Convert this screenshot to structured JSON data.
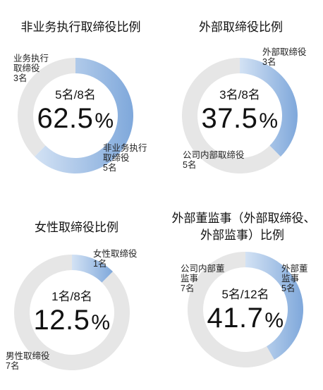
{
  "theme": {
    "highlight_start": "#d3e2f4",
    "highlight_end": "#7fa8db",
    "remainder": "#e6e6e6"
  },
  "chart_data": [
    {
      "type": "pie",
      "title": "非业务执行取缔役比例",
      "slices": [
        {
          "name": "非业务执行取缔役",
          "value": 5,
          "label_name": "非业务执行\n取缔役",
          "label_count": "5名"
        },
        {
          "name": "业务执行取缔役",
          "value": 3,
          "label_name": "业务执行\n取缔役",
          "label_count": "3名"
        }
      ],
      "center_count": "5名/8名",
      "center_value": "62.5",
      "center_unit": "%"
    },
    {
      "type": "pie",
      "title": "外部取缔役比例",
      "slices": [
        {
          "name": "外部取缔役",
          "value": 3,
          "label_name": "外部取缔役",
          "label_count": "3名"
        },
        {
          "name": "公司内部取缔役",
          "value": 5,
          "label_name": "公司内部取缔役",
          "label_count": "5名"
        }
      ],
      "center_count": "3名/8名",
      "center_value": "37.5",
      "center_unit": "%"
    },
    {
      "type": "pie",
      "title": "女性取缔役比例",
      "slices": [
        {
          "name": "女性取缔役",
          "value": 1,
          "label_name": "女性取缔役",
          "label_count": "1名"
        },
        {
          "name": "男性取缔役",
          "value": 7,
          "label_name": "男性取缔役",
          "label_count": "7名"
        }
      ],
      "center_count": "1名/8名",
      "center_value": "12.5",
      "center_unit": "%"
    },
    {
      "type": "pie",
      "title": "外部董监事（外部取缔役、外部监事）比例",
      "title_line1": "外部董监事（外部取缔役、",
      "title_line2": "外部监事）比例",
      "slices": [
        {
          "name": "外部董监事",
          "value": 5,
          "label_name": "外部董\n监事",
          "label_count": "5名"
        },
        {
          "name": "公司内部董监事",
          "value": 7,
          "label_name": "公司内部董\n监事",
          "label_count": "7名"
        }
      ],
      "center_count": "5名/12名",
      "center_value": "41.7",
      "center_unit": "%"
    }
  ]
}
